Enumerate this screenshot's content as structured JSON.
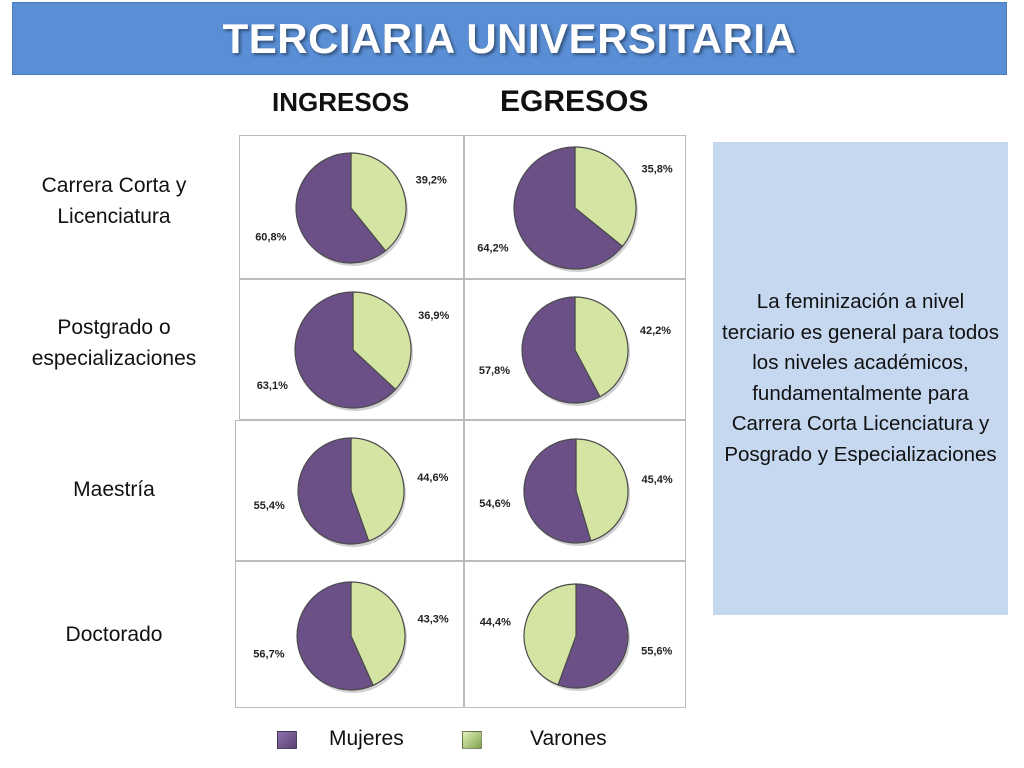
{
  "title": "TERCIARIA UNIVERSITARIA",
  "column_headers": [
    "INGRESOS",
    "EGRESOS"
  ],
  "row_labels": [
    [
      "Carrera Corta y",
      "Licenciatura"
    ],
    [
      "Postgrado o",
      "especializaciones"
    ],
    [
      "Maestría"
    ],
    [
      "Doctorado"
    ]
  ],
  "note": "La feminización a nivel terciario es general para todos los niveles académicos, fundamentalmente para Carrera Corta Licenciatura y Posgrado y Especializaciones",
  "legend": {
    "mujeres": "Mujeres",
    "varones": "Varones"
  },
  "colors": {
    "mujeres": "#6a5087",
    "varones": "#d4e4a2",
    "title_bg": "#5a8fd6",
    "note_bg": "#c5d8f0"
  },
  "chart_data": [
    {
      "type": "pie",
      "group": "INGRESOS",
      "level": "Carrera Corta y Licenciatura",
      "series": [
        {
          "name": "Mujeres",
          "value": 60.8,
          "label": "60,8%"
        },
        {
          "name": "Varones",
          "value": 39.2,
          "label": "39,2%"
        }
      ]
    },
    {
      "type": "pie",
      "group": "EGRESOS",
      "level": "Carrera Corta y Licenciatura",
      "series": [
        {
          "name": "Mujeres",
          "value": 64.2,
          "label": "64,2%"
        },
        {
          "name": "Varones",
          "value": 35.8,
          "label": "35,8%"
        }
      ]
    },
    {
      "type": "pie",
      "group": "INGRESOS",
      "level": "Postgrado o especializaciones",
      "series": [
        {
          "name": "Mujeres",
          "value": 63.1,
          "label": "63,1%"
        },
        {
          "name": "Varones",
          "value": 36.9,
          "label": "36,9%"
        }
      ]
    },
    {
      "type": "pie",
      "group": "EGRESOS",
      "level": "Postgrado o especializaciones",
      "series": [
        {
          "name": "Mujeres",
          "value": 57.8,
          "label": "57,8%"
        },
        {
          "name": "Varones",
          "value": 42.2,
          "label": "42,2%"
        }
      ]
    },
    {
      "type": "pie",
      "group": "INGRESOS",
      "level": "Maestría",
      "series": [
        {
          "name": "Mujeres",
          "value": 55.4,
          "label": "55,4%"
        },
        {
          "name": "Varones",
          "value": 44.6,
          "label": "44,6%"
        }
      ]
    },
    {
      "type": "pie",
      "group": "EGRESOS",
      "level": "Maestría",
      "series": [
        {
          "name": "Mujeres",
          "value": 54.6,
          "label": "54,6%"
        },
        {
          "name": "Varones",
          "value": 45.4,
          "label": "45,4%"
        }
      ]
    },
    {
      "type": "pie",
      "group": "INGRESOS",
      "level": "Doctorado",
      "series": [
        {
          "name": "Mujeres",
          "value": 56.7,
          "label": "56,7%"
        },
        {
          "name": "Varones",
          "value": 43.3,
          "label": "43,3%"
        }
      ]
    },
    {
      "type": "pie",
      "group": "EGRESOS",
      "level": "Doctorado",
      "series": [
        {
          "name": "Mujeres",
          "value": 55.6,
          "label": "55,6%"
        },
        {
          "name": "Varones",
          "value": 44.4,
          "label": "44,4%"
        }
      ]
    }
  ]
}
